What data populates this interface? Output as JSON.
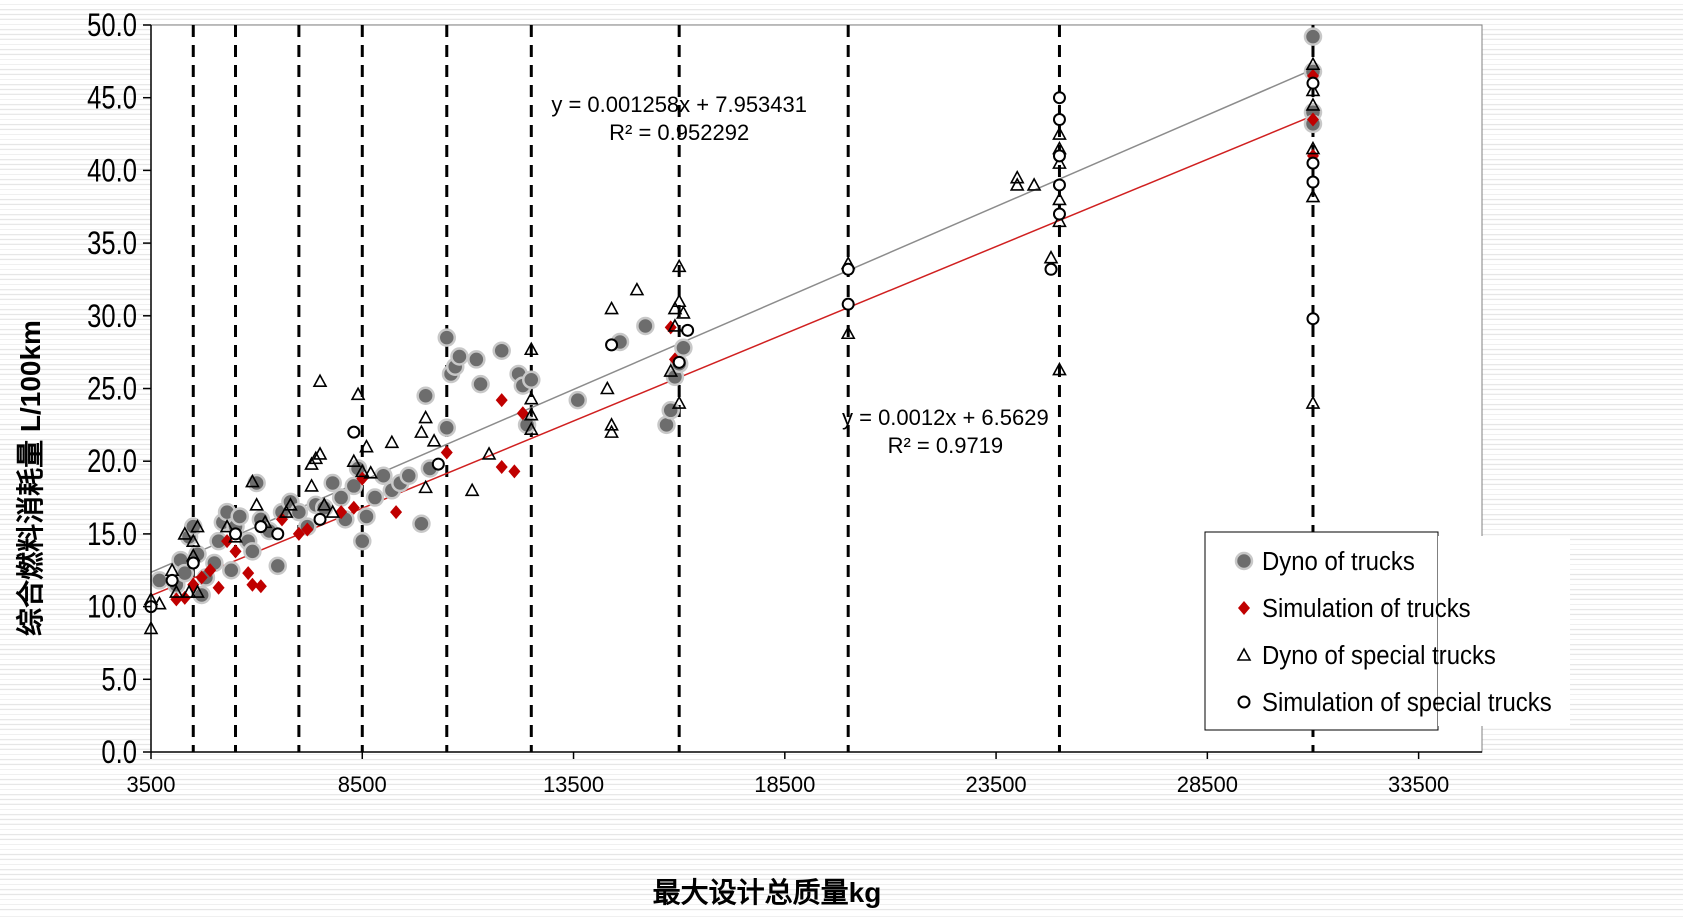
{
  "chart_data": {
    "type": "scatter",
    "xlabel": "最大设计总质量kg",
    "ylabel_cn": "综合燃料消耗量",
    "ylabel_unit": "L/100km",
    "xlim": [
      3500,
      35000
    ],
    "ylim": [
      0,
      50
    ],
    "x_ticks": [
      "3500",
      "8500",
      "13500",
      "18500",
      "23500",
      "28500",
      "33500"
    ],
    "y_ticks": [
      "0.0",
      "5.0",
      "10.0",
      "15.0",
      "20.0",
      "25.0",
      "30.0",
      "35.0",
      "40.0",
      "45.0",
      "50.0"
    ],
    "grid": false,
    "vertical_reference_lines_x": [
      4500,
      5500,
      7000,
      8500,
      10500,
      12500,
      16000,
      20000,
      25000,
      31000
    ],
    "legend_position": "bottom-right",
    "series": [
      {
        "name": "Dyno of trucks",
        "marker": "filled-circle",
        "color": "#6d6d6d",
        "points": [
          [
            3700,
            11.8
          ],
          [
            4100,
            11.5
          ],
          [
            4200,
            13.2
          ],
          [
            4300,
            12.3
          ],
          [
            4400,
            14.8
          ],
          [
            4500,
            15.5
          ],
          [
            4600,
            13.6
          ],
          [
            4700,
            10.8
          ],
          [
            4800,
            12.0
          ],
          [
            5000,
            13.0
          ],
          [
            5100,
            14.5
          ],
          [
            5200,
            15.8
          ],
          [
            5300,
            16.5
          ],
          [
            5400,
            12.5
          ],
          [
            5500,
            15.5
          ],
          [
            5600,
            16.2
          ],
          [
            5800,
            14.5
          ],
          [
            5900,
            13.8
          ],
          [
            6000,
            18.5
          ],
          [
            6100,
            16.0
          ],
          [
            6300,
            15.2
          ],
          [
            6500,
            12.8
          ],
          [
            6600,
            16.5
          ],
          [
            6800,
            17.2
          ],
          [
            7000,
            16.5
          ],
          [
            7200,
            15.5
          ],
          [
            7400,
            17.0
          ],
          [
            7600,
            16.8
          ],
          [
            7800,
            18.5
          ],
          [
            8000,
            17.5
          ],
          [
            8100,
            16.0
          ],
          [
            8300,
            18.3
          ],
          [
            8400,
            19.5
          ],
          [
            8500,
            14.5
          ],
          [
            8600,
            16.2
          ],
          [
            8800,
            17.5
          ],
          [
            9000,
            19.0
          ],
          [
            9200,
            18.0
          ],
          [
            9400,
            18.5
          ],
          [
            9600,
            19.0
          ],
          [
            9900,
            15.7
          ],
          [
            10000,
            24.5
          ],
          [
            10100,
            19.5
          ],
          [
            10500,
            22.3
          ],
          [
            10600,
            26.0
          ],
          [
            10700,
            26.5
          ],
          [
            10800,
            27.2
          ],
          [
            10500,
            28.5
          ],
          [
            11200,
            27.0
          ],
          [
            11300,
            25.3
          ],
          [
            11800,
            27.6
          ],
          [
            12200,
            26.0
          ],
          [
            12300,
            25.2
          ],
          [
            12400,
            22.5
          ],
          [
            12500,
            25.6
          ],
          [
            13600,
            24.2
          ],
          [
            14600,
            28.2
          ],
          [
            15200,
            29.3
          ],
          [
            15700,
            22.5
          ],
          [
            15800,
            23.5
          ],
          [
            15900,
            25.8
          ],
          [
            16000,
            26.7
          ],
          [
            16100,
            27.8
          ],
          [
            31000,
            49.2
          ],
          [
            31000,
            46.8
          ],
          [
            31000,
            44.0
          ],
          [
            31000,
            43.2
          ]
        ]
      },
      {
        "name": "Simulation of trucks",
        "marker": "filled-diamond",
        "color": "#c00000",
        "points": [
          [
            4100,
            10.5
          ],
          [
            4300,
            10.6
          ],
          [
            4500,
            11.5
          ],
          [
            4700,
            12.0
          ],
          [
            4900,
            12.5
          ],
          [
            5100,
            11.3
          ],
          [
            5300,
            14.5
          ],
          [
            5500,
            13.8
          ],
          [
            5800,
            12.3
          ],
          [
            5900,
            11.5
          ],
          [
            6100,
            11.4
          ],
          [
            6600,
            16.0
          ],
          [
            7000,
            15.0
          ],
          [
            7200,
            15.3
          ],
          [
            8000,
            16.5
          ],
          [
            8300,
            16.8
          ],
          [
            8500,
            18.8
          ],
          [
            9300,
            16.5
          ],
          [
            10500,
            20.6
          ],
          [
            11800,
            24.2
          ],
          [
            11800,
            19.6
          ],
          [
            12100,
            19.3
          ],
          [
            12300,
            23.3
          ],
          [
            15800,
            29.2
          ],
          [
            15900,
            27.0
          ],
          [
            31000,
            46.5
          ],
          [
            31000,
            43.5
          ],
          [
            31000,
            41.0
          ]
        ]
      },
      {
        "name": "Dyno of special trucks",
        "marker": "open-triangle",
        "color": "#000000",
        "points": [
          [
            3500,
            8.5
          ],
          [
            3500,
            10.5
          ],
          [
            3700,
            10.2
          ],
          [
            4000,
            12.5
          ],
          [
            4100,
            11.0
          ],
          [
            4300,
            15.0
          ],
          [
            4400,
            11.0
          ],
          [
            4500,
            13.5
          ],
          [
            4600,
            11.0
          ],
          [
            4500,
            14.5
          ],
          [
            4600,
            15.5
          ],
          [
            5300,
            15.5
          ],
          [
            5500,
            14.8
          ],
          [
            5900,
            18.6
          ],
          [
            6000,
            17.0
          ],
          [
            6200,
            15.8
          ],
          [
            6700,
            16.5
          ],
          [
            6800,
            17.0
          ],
          [
            7300,
            19.8
          ],
          [
            7300,
            18.3
          ],
          [
            7400,
            20.2
          ],
          [
            7500,
            20.5
          ],
          [
            7500,
            25.5
          ],
          [
            7600,
            17.0
          ],
          [
            7800,
            16.5
          ],
          [
            8300,
            20.0
          ],
          [
            8400,
            24.6
          ],
          [
            8500,
            19.3
          ],
          [
            8600,
            21.0
          ],
          [
            8700,
            19.2
          ],
          [
            9200,
            21.3
          ],
          [
            9900,
            22.0
          ],
          [
            10000,
            23.0
          ],
          [
            10000,
            18.2
          ],
          [
            10200,
            21.4
          ],
          [
            11100,
            18.0
          ],
          [
            11500,
            20.5
          ],
          [
            12500,
            27.7
          ],
          [
            12500,
            24.3
          ],
          [
            12500,
            23.2
          ],
          [
            12500,
            22.2
          ],
          [
            14300,
            25.0
          ],
          [
            14400,
            22.5
          ],
          [
            14400,
            22.0
          ],
          [
            14400,
            30.5
          ],
          [
            15000,
            31.8
          ],
          [
            15900,
            30.5
          ],
          [
            15900,
            29.3
          ],
          [
            16000,
            31.0
          ],
          [
            16100,
            30.2
          ],
          [
            16000,
            33.4
          ],
          [
            16000,
            24.0
          ],
          [
            15800,
            26.2
          ],
          [
            20000,
            33.6
          ],
          [
            20000,
            28.8
          ],
          [
            24000,
            39.5
          ],
          [
            24000,
            39.0
          ],
          [
            24400,
            39.0
          ],
          [
            24800,
            34.0
          ],
          [
            25000,
            41.5
          ],
          [
            25000,
            42.5
          ],
          [
            25000,
            40.5
          ],
          [
            25000,
            38.0
          ],
          [
            25000,
            36.5
          ],
          [
            25000,
            26.3
          ],
          [
            31000,
            47.3
          ],
          [
            31000,
            45.5
          ],
          [
            31000,
            44.5
          ],
          [
            31000,
            41.5
          ],
          [
            31000,
            38.2
          ],
          [
            31000,
            24.0
          ]
        ]
      },
      {
        "name": "Simulation of special trucks",
        "marker": "open-circle",
        "color": "#000000",
        "points": [
          [
            3500,
            10.0
          ],
          [
            4000,
            11.8
          ],
          [
            4500,
            13.0
          ],
          [
            5500,
            15.0
          ],
          [
            6100,
            15.5
          ],
          [
            6500,
            15.0
          ],
          [
            7500,
            16.0
          ],
          [
            8300,
            22.0
          ],
          [
            10300,
            19.8
          ],
          [
            14400,
            28.0
          ],
          [
            16000,
            26.8
          ],
          [
            16200,
            29.0
          ],
          [
            20000,
            33.2
          ],
          [
            20000,
            30.8
          ],
          [
            24800,
            33.2
          ],
          [
            25000,
            45.0
          ],
          [
            25000,
            43.5
          ],
          [
            25000,
            41.0
          ],
          [
            25000,
            39.0
          ],
          [
            25000,
            37.0
          ],
          [
            31000,
            46.0
          ],
          [
            31000,
            40.5
          ],
          [
            31000,
            39.2
          ],
          [
            31000,
            29.8
          ]
        ]
      }
    ],
    "trendlines": [
      {
        "equation": "y = 0.001258x + 7.953431",
        "r2": "R² = 0.952292",
        "slope": 0.001258,
        "intercept": 7.953431,
        "color": "#8c8c8c",
        "x_range": [
          3500,
          31000
        ]
      },
      {
        "equation": "y = 0.0012x + 6.5629",
        "r2": "R² = 0.9719",
        "slope": 0.0012,
        "intercept": 6.5629,
        "color": "#d02020",
        "x_range": [
          3500,
          31000
        ]
      }
    ],
    "annotations": [
      {
        "text_ref": "trendlines.0",
        "x": 16000,
        "y": 44.0
      },
      {
        "text_ref": "trendlines.1",
        "x": 22300,
        "y": 22.5
      }
    ]
  }
}
